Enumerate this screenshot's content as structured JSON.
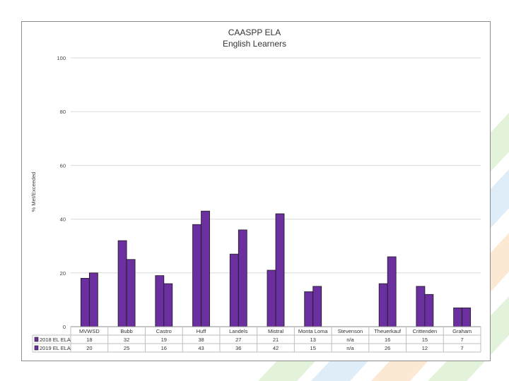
{
  "chart_data": {
    "type": "bar",
    "title": "CAASPP ELA",
    "subtitle": "English Learners",
    "ylabel": "% Met/Exceeded",
    "ylim": [
      0,
      100
    ],
    "yticks": [
      0,
      20,
      40,
      60,
      80,
      100
    ],
    "grid": true,
    "legend": "table-below",
    "categories": [
      "MVWSD",
      "Bubb",
      "Castro",
      "Huff",
      "Landels",
      "Mistral",
      "Monta Loma",
      "Stevenson",
      "Theuerkauf",
      "Crittenden",
      "Graham"
    ],
    "series": [
      {
        "name": "2018 EL ELA",
        "color": "#6b2fa0",
        "values": [
          18,
          32,
          19,
          38,
          27,
          21,
          13,
          null,
          16,
          15,
          7
        ],
        "labels": [
          "18",
          "32",
          "19",
          "38",
          "27",
          "21",
          "13",
          "n/a",
          "16",
          "15",
          "7"
        ]
      },
      {
        "name": "2019 EL ELA",
        "color": "#6b2fa0",
        "values": [
          20,
          25,
          16,
          43,
          36,
          42,
          15,
          null,
          26,
          12,
          7
        ],
        "labels": [
          "20",
          "25",
          "16",
          "43",
          "36",
          "42",
          "15",
          "n/a",
          "26",
          "12",
          "7"
        ]
      }
    ]
  }
}
